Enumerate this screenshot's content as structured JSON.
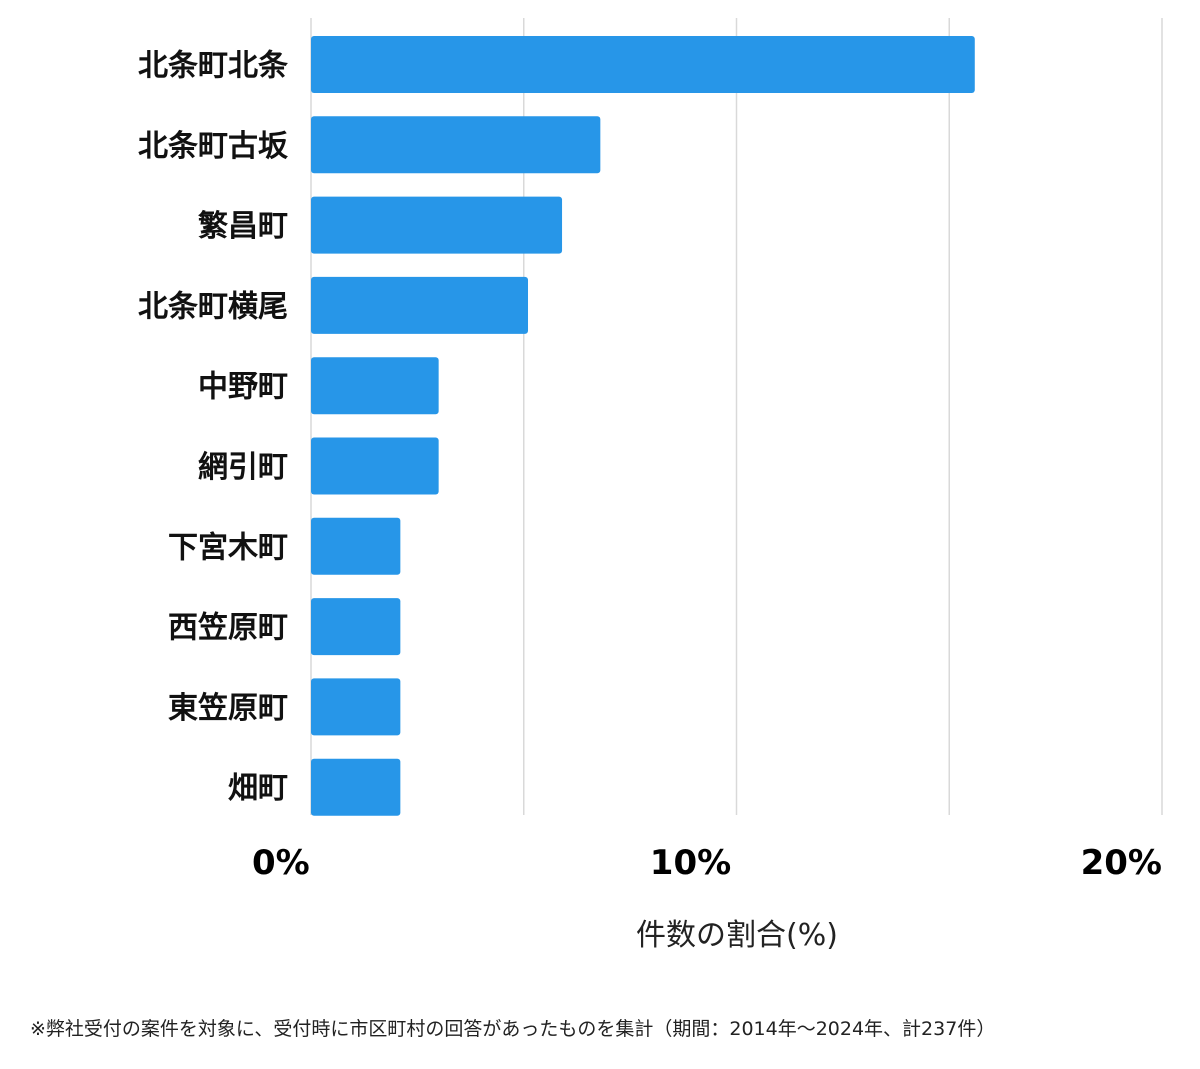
{
  "chart_data": {
    "type": "bar",
    "orientation": "horizontal",
    "categories": [
      "北条町北条",
      "北条町古坂",
      "繁昌町",
      "北条町横尾",
      "中野町",
      "網引町",
      "下宮木町",
      "西笠原町",
      "東笠原町",
      "畑町"
    ],
    "values": [
      15.6,
      6.8,
      5.9,
      5.1,
      3.0,
      3.0,
      2.1,
      2.1,
      2.1,
      2.1
    ],
    "xlim": [
      0,
      20
    ],
    "xticks": [
      "0%",
      "10%",
      "20%"
    ],
    "xtick_values": [
      0,
      10,
      20
    ],
    "gridlines": [
      0,
      5,
      10,
      15,
      20
    ],
    "xlabel": "件数の割合(%)",
    "bar_color": "#2796e8",
    "grid": true
  },
  "footnote": "※弊社受付の案件を対象に、受付時に市区町村の回答があったものを集計（期間：2014年〜2024年、計237件）"
}
